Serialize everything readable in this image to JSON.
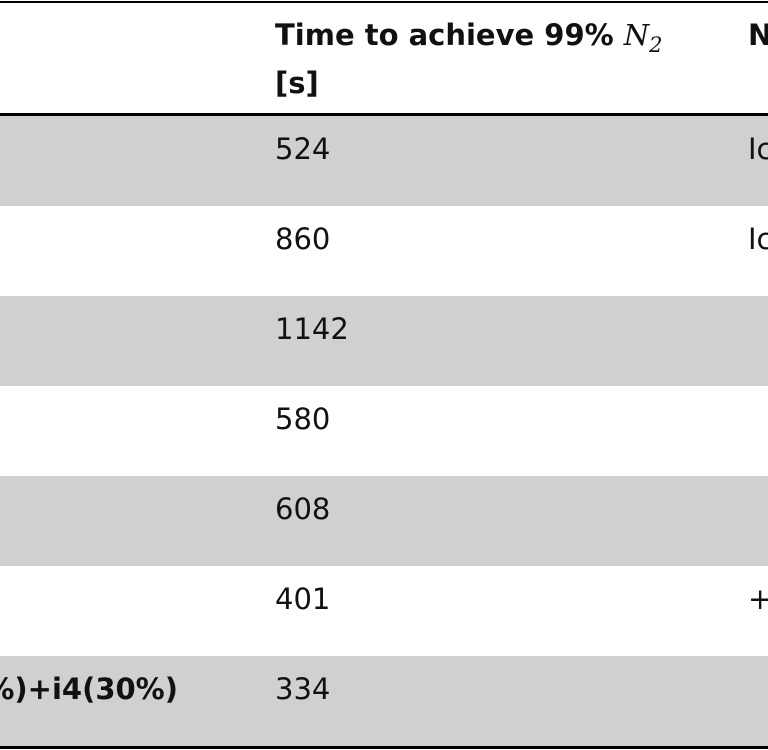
{
  "table": {
    "header": {
      "time": {
        "text": "Time to achieve 99%",
        "symbol": "N",
        "subscript": "2",
        "unit": "[s]"
      },
      "note": "N"
    },
    "rows": [
      {
        "time": "524",
        "note": "Ic"
      },
      {
        "time": "860",
        "note": "Ic"
      },
      {
        "time": "1142"
      },
      {
        "time": "580"
      },
      {
        "time": "608"
      },
      {
        "time": "401",
        "note": "+"
      },
      {
        "label": "%)+i4(30%)",
        "time": "334"
      }
    ]
  }
}
